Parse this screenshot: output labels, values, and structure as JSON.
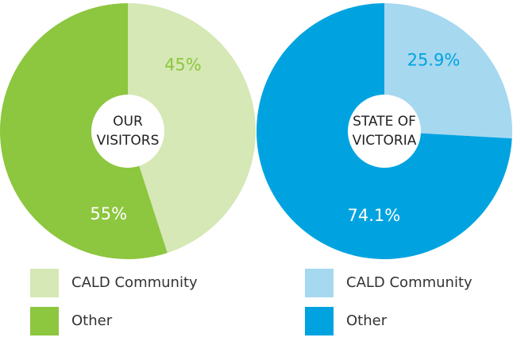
{
  "chart_data": [
    {
      "type": "pie",
      "center_label": [
        "OUR",
        "VISITORS"
      ],
      "categories": [
        "CALD Community",
        "Other"
      ],
      "values": [
        45,
        55
      ],
      "value_labels": [
        "45%",
        "55%"
      ],
      "colors": [
        "#d5e8b5",
        "#8dc63f"
      ],
      "label_colors": [
        "#8dc63f",
        "#ffffff"
      ]
    },
    {
      "type": "pie",
      "center_label": [
        "STATE OF",
        "VICTORIA"
      ],
      "categories": [
        "CALD Community",
        "Other"
      ],
      "values": [
        25.9,
        74.1
      ],
      "value_labels": [
        "25.9%",
        "74.1%"
      ],
      "colors": [
        "#a6d8f0",
        "#00a3e0"
      ],
      "label_colors": [
        "#00a3e0",
        "#ffffff"
      ]
    }
  ]
}
